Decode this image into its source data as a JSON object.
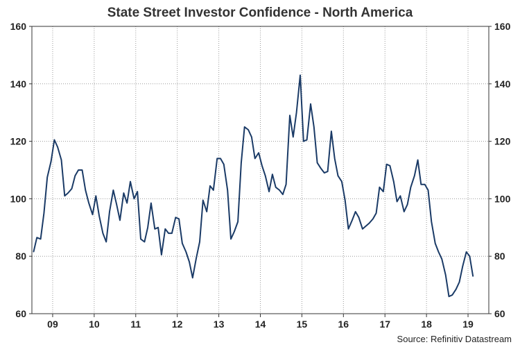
{
  "chart_data": {
    "type": "line",
    "title": "State Street Investor Confidence - North America",
    "source": "Source: Refinitiv Datastream",
    "xlabel": "",
    "ylabel": "",
    "ylim": [
      60,
      160
    ],
    "yticks": [
      60,
      80,
      100,
      120,
      140,
      160
    ],
    "xlim": [
      2008.5,
      2019.5
    ],
    "xtick_labels": [
      "09",
      "10",
      "11",
      "12",
      "13",
      "14",
      "15",
      "16",
      "17",
      "18",
      "19"
    ],
    "xtick_positions": [
      2009.0,
      2010.0,
      2011.0,
      2012.0,
      2013.0,
      2014.0,
      2015.0,
      2016.0,
      2017.0,
      2018.0,
      2019.0
    ],
    "grid": true,
    "line_color": "#1a3a66",
    "series": [
      {
        "x": [
          2008.54,
          2008.62,
          2008.71,
          2008.79,
          2008.87,
          2008.96,
          2009.04,
          2009.12,
          2009.21,
          2009.29,
          2009.37,
          2009.46,
          2009.54,
          2009.62,
          2009.71,
          2009.79,
          2009.87,
          2009.96,
          2010.04,
          2010.12,
          2010.21,
          2010.29,
          2010.37,
          2010.46,
          2010.54,
          2010.62,
          2010.71,
          2010.79,
          2010.87,
          2010.96,
          2011.04,
          2011.12,
          2011.21,
          2011.29,
          2011.37,
          2011.46,
          2011.54,
          2011.62,
          2011.71,
          2011.79,
          2011.87,
          2011.96,
          2012.04,
          2012.12,
          2012.21,
          2012.29,
          2012.37,
          2012.46,
          2012.54,
          2012.62,
          2012.71,
          2012.79,
          2012.87,
          2012.96,
          2013.04,
          2013.12,
          2013.21,
          2013.29,
          2013.37,
          2013.46,
          2013.54,
          2013.62,
          2013.71,
          2013.79,
          2013.87,
          2013.96,
          2014.04,
          2014.12,
          2014.21,
          2014.29,
          2014.37,
          2014.46,
          2014.54,
          2014.62,
          2014.71,
          2014.79,
          2014.87,
          2014.96,
          2015.04,
          2015.12,
          2015.21,
          2015.29,
          2015.37,
          2015.46,
          2015.54,
          2015.62,
          2015.71,
          2015.79,
          2015.87,
          2015.96,
          2016.04,
          2016.12,
          2016.21,
          2016.29,
          2016.37,
          2016.46,
          2016.54,
          2016.62,
          2016.71,
          2016.79,
          2016.87,
          2016.96,
          2017.04,
          2017.12,
          2017.21,
          2017.29,
          2017.37,
          2017.46,
          2017.54,
          2017.62,
          2017.71,
          2017.79,
          2017.87,
          2017.96,
          2018.04,
          2018.12,
          2018.21,
          2018.29,
          2018.37,
          2018.46,
          2018.54,
          2018.62,
          2018.71,
          2018.79,
          2018.87,
          2018.96,
          2019.04,
          2019.12
        ],
        "values": [
          81.5,
          86.5,
          86.0,
          95.0,
          107.5,
          113.0,
          120.5,
          118.0,
          113.5,
          101.0,
          102.0,
          103.5,
          108.0,
          110.0,
          110.0,
          103.0,
          98.5,
          94.5,
          101.0,
          94.0,
          88.0,
          85.0,
          95.5,
          103.0,
          98.0,
          92.5,
          102.0,
          98.5,
          106.0,
          100.0,
          102.5,
          86.0,
          85.0,
          90.0,
          98.5,
          89.5,
          90.0,
          80.5,
          89.5,
          88.0,
          88.0,
          93.5,
          93.0,
          84.5,
          81.5,
          78.0,
          72.5,
          79.5,
          85.0,
          99.5,
          95.5,
          104.5,
          103.0,
          114.0,
          114.0,
          112.0,
          103.0,
          86.0,
          88.5,
          92.0,
          112.5,
          125.0,
          124.0,
          121.5,
          114.0,
          116.0,
          111.5,
          108.0,
          102.5,
          108.5,
          104.0,
          103.0,
          101.5,
          105.0,
          129.0,
          121.5,
          130.0,
          143.0,
          120.0,
          120.5,
          133.0,
          125.0,
          112.5,
          110.5,
          109.0,
          109.5,
          123.5,
          114.0,
          108.0,
          106.0,
          99.5,
          89.5,
          92.5,
          95.5,
          93.5,
          89.5,
          90.5,
          91.5,
          93.0,
          95.0,
          104.0,
          102.5,
          112.0,
          111.5,
          106.0,
          99.0,
          101.0,
          95.5,
          98.0,
          104.0,
          108.0,
          113.5,
          105.0,
          105.0,
          103.0,
          92.0,
          84.5,
          81.5,
          79.0,
          73.5,
          66.0,
          66.5,
          68.5,
          71.0,
          76.5,
          81.5,
          80.0,
          73.0
        ]
      }
    ]
  }
}
